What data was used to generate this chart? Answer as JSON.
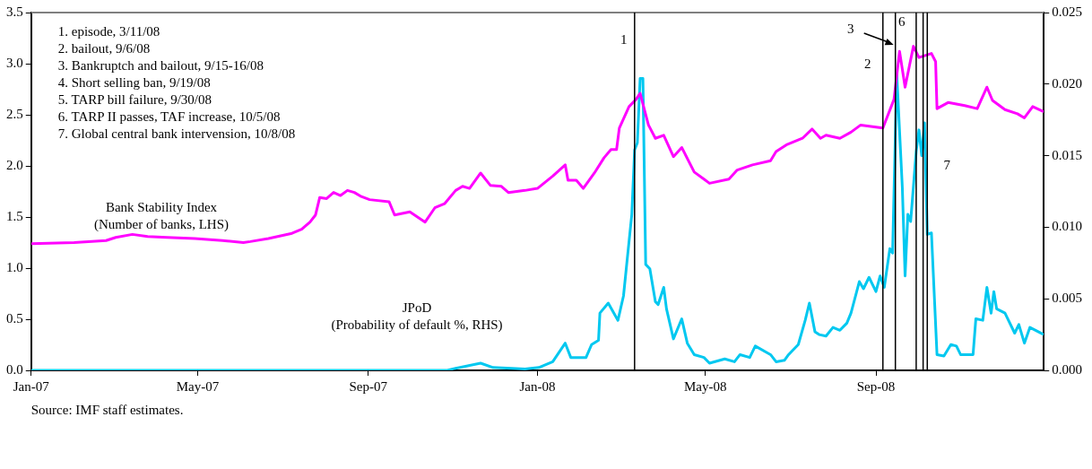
{
  "chart_data": {
    "type": "line",
    "annotations": [
      "1. episode, 3/11/08",
      "2. bailout, 9/6/08",
      "3. Bankruptch and bailout, 9/15-16/08",
      "4. Short selling ban, 9/19/08",
      "5. TARP bill failure, 9/30/08",
      "6. TARP II passes, TAF increase, 10/5/08",
      "7. Global central bank intervension, 10/8/08",
      "Source: IMF staff estimates."
    ],
    "series": [
      {
        "name": "Bank Stability Index (Number of banks, LHS)",
        "color": "#ff00ff",
        "x": [
          "2007-01-01",
          "2007-02-01",
          "2007-02-24",
          "2007-03-03",
          "2007-03-15",
          "2007-03-26",
          "2007-04-09",
          "2007-04-29",
          "2007-05-19",
          "2007-06-03",
          "2007-06-08",
          "2007-06-21",
          "2007-07-08",
          "2007-07-15",
          "2007-07-21",
          "2007-07-25",
          "2007-07-28",
          "2007-08-02",
          "2007-08-07",
          "2007-08-12",
          "2007-08-17",
          "2007-08-22",
          "2007-08-27",
          "2007-09-02",
          "2007-09-16",
          "2007-09-20",
          "2007-10-01",
          "2007-10-12",
          "2007-10-19",
          "2007-10-26",
          "2007-11-03",
          "2007-11-08",
          "2007-11-13",
          "2007-11-21",
          "2007-11-28",
          "2007-12-06",
          "2007-12-11",
          "2007-12-23",
          "2008-01-01",
          "2008-01-12",
          "2008-01-21",
          "2008-01-23",
          "2008-01-29",
          "2008-02-03",
          "2008-02-11",
          "2008-02-18",
          "2008-02-23",
          "2008-02-27",
          "2008-02-29",
          "2008-03-07",
          "2008-03-12",
          "2008-03-15",
          "2008-03-21",
          "2008-03-26",
          "2008-04-01",
          "2008-04-08",
          "2008-04-14",
          "2008-04-23",
          "2008-04-30",
          "2008-05-04",
          "2008-05-18",
          "2008-05-24",
          "2008-06-04",
          "2008-06-17",
          "2008-06-21",
          "2008-06-29",
          "2008-07-10",
          "2008-07-17",
          "2008-07-23",
          "2008-07-27",
          "2008-08-06",
          "2008-08-14",
          "2008-08-21",
          "2008-09-01",
          "2008-09-06",
          "2008-09-14",
          "2008-09-18",
          "2008-09-22",
          "2008-09-28",
          "2008-10-02",
          "2008-10-11",
          "2008-10-14",
          "2008-10-15",
          "2008-10-23",
          "2008-11-04",
          "2008-11-13",
          "2008-11-20",
          "2008-11-24",
          "2008-12-03",
          "2008-12-12",
          "2008-12-17",
          "2008-12-23",
          "2008-12-31"
        ],
        "values": [
          1.24,
          1.25,
          1.27,
          1.3,
          1.33,
          1.31,
          1.3,
          1.29,
          1.27,
          1.25,
          1.26,
          1.29,
          1.34,
          1.38,
          1.45,
          1.52,
          1.69,
          1.68,
          1.74,
          1.71,
          1.76,
          1.74,
          1.7,
          1.67,
          1.65,
          1.52,
          1.55,
          1.45,
          1.59,
          1.63,
          1.76,
          1.8,
          1.78,
          1.93,
          1.81,
          1.8,
          1.74,
          1.76,
          1.78,
          1.9,
          2.01,
          1.86,
          1.86,
          1.78,
          1.93,
          2.08,
          2.16,
          2.16,
          2.37,
          2.58,
          2.65,
          2.71,
          2.4,
          2.27,
          2.3,
          2.09,
          2.18,
          1.94,
          1.87,
          1.83,
          1.87,
          1.96,
          2.01,
          2.05,
          2.14,
          2.21,
          2.27,
          2.36,
          2.27,
          2.3,
          2.27,
          2.33,
          2.4,
          2.38,
          2.37,
          2.65,
          3.12,
          2.77,
          3.17,
          3.06,
          3.1,
          3.02,
          2.56,
          2.62,
          2.59,
          2.56,
          2.77,
          2.64,
          2.55,
          2.51,
          2.47,
          2.58,
          2.53
        ]
      },
      {
        "name": "JPoD (Probability of default %, RHS)",
        "color": "#00c8f0",
        "axis": "y2",
        "x": [
          "2007-01-01",
          "2007-08-20",
          "2007-10-28",
          "2007-11-01",
          "2007-11-21",
          "2007-11-30",
          "2007-12-23",
          "2008-01-02",
          "2008-01-12",
          "2008-01-21",
          "2008-01-25",
          "2008-02-05",
          "2008-02-09",
          "2008-02-14",
          "2008-02-15",
          "2008-02-21",
          "2008-02-28",
          "2008-03-03",
          "2008-03-05",
          "2008-03-09",
          "2008-03-11",
          "2008-03-13",
          "2008-03-15",
          "2008-03-17",
          "2008-03-19",
          "2008-03-22",
          "2008-03-26",
          "2008-03-28",
          "2008-04-01",
          "2008-04-03",
          "2008-04-08",
          "2008-04-14",
          "2008-04-18",
          "2008-04-23",
          "2008-04-30",
          "2008-05-04",
          "2008-05-15",
          "2008-05-22",
          "2008-05-26",
          "2008-06-02",
          "2008-06-06",
          "2008-06-17",
          "2008-06-21",
          "2008-06-27",
          "2008-06-30",
          "2008-07-07",
          "2008-07-12",
          "2008-07-15",
          "2008-07-19",
          "2008-07-22",
          "2008-07-27",
          "2008-08-01",
          "2008-08-06",
          "2008-08-11",
          "2008-08-14",
          "2008-08-20",
          "2008-08-23",
          "2008-08-27",
          "2008-09-01",
          "2008-09-04",
          "2008-09-07",
          "2008-09-11",
          "2008-09-13",
          "2008-09-16",
          "2008-09-20",
          "2008-09-22",
          "2008-09-24",
          "2008-09-26",
          "2008-09-30",
          "2008-10-02",
          "2008-10-04",
          "2008-10-06",
          "2008-10-08",
          "2008-10-11",
          "2008-10-15",
          "2008-10-20",
          "2008-10-25",
          "2008-10-29",
          "2008-11-01",
          "2008-11-10",
          "2008-11-12",
          "2008-11-17",
          "2008-11-20",
          "2008-11-23",
          "2008-11-25",
          "2008-11-27",
          "2008-12-03",
          "2008-12-10",
          "2008-12-13",
          "2008-12-17",
          "2008-12-21",
          "2008-12-31"
        ],
        "values": [
          0,
          0,
          0,
          0.0001,
          0.0005,
          0.0002,
          0.0001,
          0.0002,
          0.0006,
          0.0019,
          0.0009,
          0.0009,
          0.0018,
          0.0021,
          0.004,
          0.0047,
          0.0035,
          0.0052,
          0.0071,
          0.0109,
          0.0154,
          0.0159,
          0.0204,
          0.0204,
          0.0074,
          0.0071,
          0.0048,
          0.0046,
          0.0058,
          0.0043,
          0.0022,
          0.0036,
          0.0019,
          0.0011,
          0.0009,
          0.0005,
          0.0008,
          0.0006,
          0.0011,
          0.0009,
          0.0017,
          0.0011,
          0.0006,
          0.0007,
          0.0011,
          0.0018,
          0.0035,
          0.0047,
          0.0027,
          0.0025,
          0.0024,
          0.003,
          0.0028,
          0.0033,
          0.004,
          0.0062,
          0.0057,
          0.0065,
          0.0055,
          0.0066,
          0.0058,
          0.0085,
          0.0082,
          0.0207,
          0.0128,
          0.0066,
          0.0109,
          0.0104,
          0.0153,
          0.0168,
          0.015,
          0.0173,
          0.0095,
          0.0096,
          0.0011,
          0.001,
          0.0018,
          0.0017,
          0.0011,
          0.0011,
          0.0036,
          0.0035,
          0.0058,
          0.004,
          0.0055,
          0.0043,
          0.004,
          0.0026,
          0.0032,
          0.0019,
          0.003,
          0.0025
        ]
      }
    ],
    "xlim": [
      "2007-01-01",
      "2008-12-31"
    ],
    "xticks": [
      {
        "value": "2007-01-01",
        "label": "Jan-07"
      },
      {
        "value": "2007-05-01",
        "label": "May-07"
      },
      {
        "value": "2007-09-01",
        "label": "Sep-07"
      },
      {
        "value": "2008-01-01",
        "label": "Jan-08"
      },
      {
        "value": "2008-05-01",
        "label": "May-08"
      },
      {
        "value": "2008-09-01",
        "label": "Sep-08"
      }
    ],
    "ylim": [
      0,
      3.5
    ],
    "yticks": [
      {
        "value": 0,
        "label": "0.0"
      },
      {
        "value": 0.5,
        "label": "0.5"
      },
      {
        "value": 1,
        "label": "1.0"
      },
      {
        "value": 1.5,
        "label": "1.5"
      },
      {
        "value": 2,
        "label": "2.0"
      },
      {
        "value": 2.5,
        "label": "2.5"
      },
      {
        "value": 3,
        "label": "3.0"
      },
      {
        "value": 3.5,
        "label": "3.5"
      }
    ],
    "y2lim": [
      0,
      0.025
    ],
    "y2ticks": [
      {
        "value": 0,
        "label": "0.000"
      },
      {
        "value": 0.005,
        "label": "0.005"
      },
      {
        "value": 0.01,
        "label": "0.010"
      },
      {
        "value": 0.015,
        "label": "0.015"
      },
      {
        "value": 0.02,
        "label": "0.020"
      },
      {
        "value": 0.025,
        "label": "0.025"
      }
    ],
    "ref_lines": [
      {
        "axis": "x",
        "value": "2008-03-11",
        "label": "1",
        "color": "#000000"
      },
      {
        "axis": "x",
        "value": "2008-09-06",
        "label": "2",
        "color": "#000000"
      },
      {
        "axis": "x",
        "value": "2008-09-15",
        "label": "3",
        "color": "#000000"
      },
      {
        "axis": "x",
        "value": "2008-09-30",
        "label": null,
        "color": "#000000"
      },
      {
        "axis": "x",
        "value": "2008-10-05",
        "label": "6",
        "color": "#000000"
      },
      {
        "axis": "x",
        "value": "2008-10-08",
        "label": "7",
        "color": "#000000"
      }
    ],
    "marker": "none",
    "line_style": "solid"
  }
}
